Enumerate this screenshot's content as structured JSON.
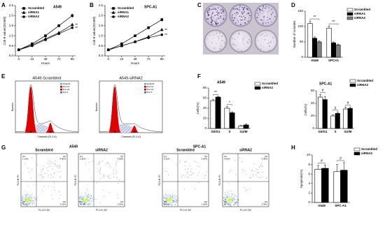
{
  "panel_labels": [
    "A",
    "B",
    "C",
    "D",
    "E",
    "F",
    "G",
    "H"
  ],
  "chart_data": [
    {
      "type": "line",
      "title": "A549",
      "x_label": "Hours",
      "y_label": "Cck-8 value(OD450)",
      "x": [
        0,
        24,
        48,
        72,
        96
      ],
      "xlim": [
        -6,
        102
      ],
      "xticks": [
        0,
        24,
        48,
        72,
        96
      ],
      "ylim": [
        0,
        2.5
      ],
      "yticks": [
        {
          "value": 0,
          "label": "0.0"
        },
        0.5,
        {
          "value": 1,
          "label": "1.0"
        },
        1.5,
        {
          "value": 2,
          "label": "2.0"
        },
        2.5
      ],
      "series": [
        {
          "name": "Scrambled",
          "color": "#000000",
          "marker": "square",
          "values": [
            0.3,
            0.6,
            1.0,
            1.5,
            2.0
          ],
          "errors": [
            0.03,
            0.05,
            0.06,
            0.08,
            0.1
          ]
        },
        {
          "name": "siRNA1",
          "color": "#000000",
          "marker": "triangle",
          "values": [
            0.3,
            0.55,
            0.85,
            1.15,
            1.55
          ],
          "errors": [
            0.03,
            0.04,
            0.05,
            0.06,
            0.08
          ]
        },
        {
          "name": "siRNA2",
          "color": "#000000",
          "marker": "circle",
          "values": [
            0.3,
            0.5,
            0.8,
            1.1,
            1.4
          ],
          "errors": [
            0.03,
            0.04,
            0.05,
            0.06,
            0.07
          ]
        }
      ],
      "annotations": [
        "**",
        "**"
      ]
    },
    {
      "type": "line",
      "title": "SPC-A1",
      "x_label": "Hours",
      "y_label": "Cck-8 value(OD450)",
      "x": [
        0,
        24,
        48,
        72,
        96
      ],
      "xlim": [
        -6,
        102
      ],
      "xticks": [
        0,
        24,
        48,
        72,
        96
      ],
      "ylim": [
        0,
        2.5
      ],
      "yticks": [
        {
          "value": 0,
          "label": "0.0"
        },
        0.5,
        {
          "value": 1,
          "label": "1.0"
        },
        1.5,
        {
          "value": 2,
          "label": "2.0"
        },
        2.5
      ],
      "series": [
        {
          "name": "Scrambled",
          "color": "#000000",
          "marker": "square",
          "values": [
            0.3,
            0.6,
            1.0,
            1.4,
            1.8
          ],
          "errors": [
            0.03,
            0.05,
            0.06,
            0.07,
            0.09
          ]
        },
        {
          "name": "siRNA1",
          "color": "#000000",
          "marker": "triangle",
          "values": [
            0.3,
            0.5,
            0.7,
            0.95,
            1.3
          ],
          "errors": [
            0.03,
            0.04,
            0.05,
            0.06,
            0.07
          ]
        },
        {
          "name": "siRNA2",
          "color": "#000000",
          "marker": "circle",
          "values": [
            0.3,
            0.5,
            0.7,
            0.9,
            1.05
          ],
          "errors": [
            0.03,
            0.04,
            0.05,
            0.05,
            0.06
          ]
        }
      ],
      "annotations": [
        "**",
        "**"
      ]
    },
    {
      "type": "bar",
      "y_label": "Number of colonies",
      "categories": [
        "A549",
        "SPCA1"
      ],
      "ylim": [
        0,
        150
      ],
      "yticks": [
        0,
        50,
        100,
        150
      ],
      "series": [
        {
          "name": "Scrambled",
          "color": "#ffffff",
          "values": [
            110,
            95
          ],
          "errors": [
            8,
            7
          ]
        },
        {
          "name": "siRNA1",
          "color": "#000000",
          "values": [
            62,
            47
          ],
          "errors": [
            4,
            3
          ]
        },
        {
          "name": "siRNA2",
          "color": "#808080",
          "values": [
            50,
            40
          ],
          "errors": [
            3,
            3
          ]
        }
      ],
      "annotations": [
        "**",
        "**"
      ]
    },
    {
      "type": "bar",
      "title": "A549",
      "y_label": "Cells(%)",
      "categories": [
        "G0/G1",
        "S",
        "G2/M"
      ],
      "ylim": [
        0,
        80
      ],
      "yticks": [
        0,
        20,
        40,
        60,
        80
      ],
      "series": [
        {
          "name": "Scrambled",
          "color": "#ffffff",
          "values": [
            55,
            40,
            5
          ],
          "errors": [
            2,
            3,
            1
          ]
        },
        {
          "name": "siRNA2",
          "color": "#000000",
          "values": [
            62,
            31,
            7
          ],
          "errors": [
            1,
            2,
            2
          ]
        }
      ],
      "annotations": [
        "**",
        "*"
      ]
    },
    {
      "type": "bar",
      "title": "SPC-A1",
      "y_label": "Cells(%)",
      "categories": [
        "G0/G1",
        "S",
        "G2/M"
      ],
      "ylim": [
        0,
        60
      ],
      "yticks": [
        0,
        20,
        40,
        60
      ],
      "series": [
        {
          "name": "Scrambled",
          "color": "#ffffff",
          "values": [
            50,
            20,
            31
          ],
          "errors": [
            4,
            2,
            3
          ]
        },
        {
          "name": "siRNA2",
          "color": "#000000",
          "values": [
            46,
            24,
            32
          ],
          "errors": [
            5,
            2,
            2
          ]
        }
      ],
      "annotations": [
        "#",
        "#",
        "#"
      ]
    },
    {
      "type": "bar",
      "y_label": "Apoptosis(%)",
      "categories": [
        "A549",
        "SPC-A1"
      ],
      "ylim": [
        0,
        10
      ],
      "yticks": [
        0,
        2,
        4,
        6,
        8,
        10
      ],
      "series": [
        {
          "name": "Scrambled",
          "color": "#ffffff",
          "values": [
            7,
            6.5
          ],
          "errors": [
            0.8,
            1.5
          ]
        },
        {
          "name": "siRNA2",
          "color": "#000000",
          "values": [
            7.2,
            6.8
          ],
          "errors": [
            0.7,
            1.6
          ]
        }
      ],
      "annotations": [
        "#",
        "#"
      ]
    }
  ],
  "flow_histograms": {
    "titles": [
      "A549-Scrambled",
      "A549-siRNA2"
    ],
    "x_label": "Channels (FL2-A)",
    "y_label": "Number",
    "legend": [
      "Haploid",
      "Dip G1",
      "Dip G2",
      "Dip S"
    ]
  },
  "flow_scatter": {
    "groups": [
      "A549",
      "SPC-A1"
    ],
    "titles": [
      "Scrambled",
      "siRNA2",
      "Scrambled",
      "siRNA2"
    ],
    "x_label": "FL1-H: AV",
    "y_label": "FL3-H: PI",
    "quadrant_names": [
      "Q1",
      "Q2",
      "Q3",
      "Q4"
    ],
    "quadrants": [
      [
        "1.10%",
        "4.80%",
        "2.31%",
        "91.8%"
      ],
      [
        "1.80%",
        "4.82%",
        "2.61%",
        "90.8%"
      ],
      [
        "1.15%",
        "3.64%",
        "1.18%",
        "94.0%"
      ],
      [
        "4.60%",
        "3.38%",
        "2.35%",
        "89.7%"
      ]
    ]
  }
}
